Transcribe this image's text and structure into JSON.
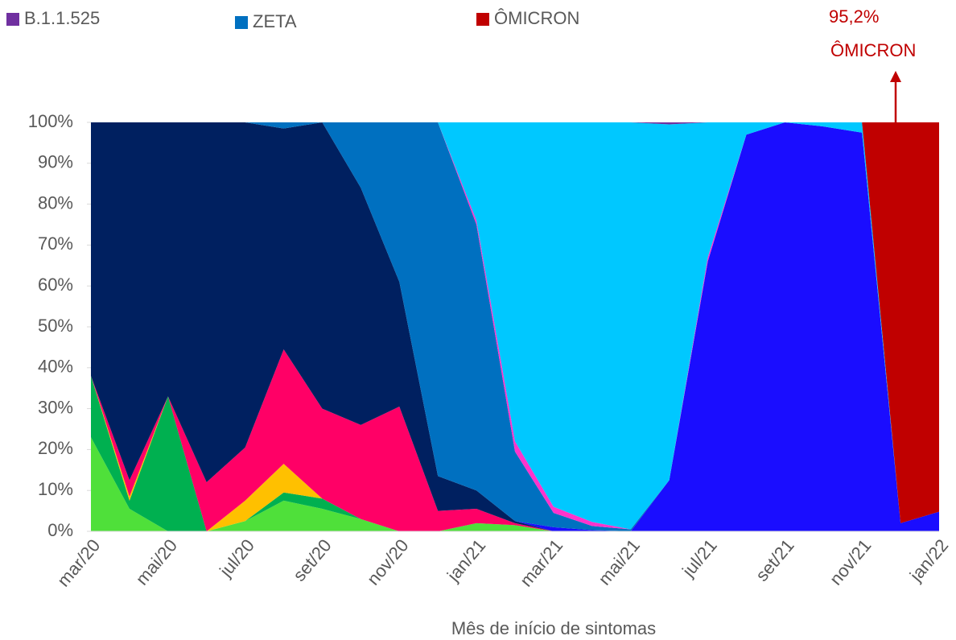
{
  "chart_data": {
    "type": "stacked_area",
    "xlabel": "Mês de início de sintomas",
    "annotation": {
      "value_label": "95,2%",
      "text": "ÔMICRON",
      "color": "#c00000"
    },
    "categories": [
      "mar/20",
      null,
      "mai/20",
      null,
      "jul/20",
      null,
      "set/20",
      null,
      "nov/20",
      null,
      "jan/21",
      null,
      "mar/21",
      null,
      "mai/21",
      null,
      "jul/21",
      null,
      "set/21",
      null,
      "nov/21",
      null,
      "jan/22"
    ],
    "ylim": [
      0,
      100
    ],
    "yticks": [
      {
        "value": 0,
        "label": "0%"
      },
      {
        "value": 10,
        "label": "10%"
      },
      {
        "value": 20,
        "label": "20%"
      },
      {
        "value": 30,
        "label": "30%"
      },
      {
        "value": 40,
        "label": "40%"
      },
      {
        "value": 50,
        "label": "50%"
      },
      {
        "value": 60,
        "label": "60%"
      },
      {
        "value": 70,
        "label": "70%"
      },
      {
        "value": 80,
        "label": "80%"
      },
      {
        "value": 90,
        "label": "90%"
      },
      {
        "value": 100,
        "label": "100%"
      }
    ],
    "series": [
      {
        "color": "#4fe03a",
        "values": [
          23,
          5.5,
          0,
          0,
          2.5,
          7.5,
          5.5,
          3,
          0,
          0,
          2,
          1.5,
          0,
          0,
          0,
          0,
          0,
          0,
          0,
          0,
          0,
          0,
          0
        ]
      },
      {
        "color": "#00b050",
        "values": [
          15,
          2,
          33,
          0,
          0,
          2,
          2.5,
          0,
          0,
          0,
          0,
          0,
          0,
          0,
          0,
          0,
          0,
          0,
          0,
          0,
          0,
          0,
          0
        ]
      },
      {
        "color": "#ffc000",
        "values": [
          0,
          1,
          0,
          0,
          5,
          7,
          0,
          0,
          0,
          0,
          0,
          0,
          0,
          0,
          0,
          0,
          0,
          0,
          0,
          0,
          0,
          0,
          0
        ]
      },
      {
        "color": "#ff0066",
        "values": [
          0,
          4,
          0,
          12,
          13,
          28,
          22,
          23,
          30.5,
          5,
          3.5,
          0.5,
          0,
          0,
          0,
          0,
          0,
          0,
          0,
          0,
          0,
          0,
          0
        ]
      },
      {
        "color": "#002060",
        "values": [
          62,
          87.5,
          67,
          88,
          79.5,
          54,
          70,
          58,
          30.5,
          8.5,
          4.5,
          0.5,
          0,
          0,
          0,
          0,
          0,
          0,
          0,
          0,
          0,
          0,
          0
        ]
      },
      {
        "color": "#1a0dff",
        "values": [
          0,
          0,
          0,
          0,
          0,
          0,
          0,
          0,
          0,
          0,
          0,
          0,
          1,
          0.3,
          0,
          12.5,
          66,
          97,
          100,
          99,
          97.5,
          2,
          4.8
        ]
      },
      {
        "name": "ZETA",
        "color": "#0070c0",
        "values": [
          0,
          0,
          0,
          0,
          0,
          1.5,
          0,
          16,
          39,
          86.5,
          65,
          17,
          3.5,
          1,
          0.5,
          0,
          0,
          0,
          0,
          0,
          0,
          0,
          0
        ]
      },
      {
        "color": "#ff33cc",
        "values": [
          0,
          0,
          0,
          0,
          0,
          0,
          0,
          0,
          0,
          0,
          1,
          2.5,
          1.5,
          1,
          0,
          0,
          1,
          0,
          0,
          0,
          0,
          0,
          0
        ]
      },
      {
        "color": "#00c8ff",
        "values": [
          0,
          0,
          0,
          0,
          0,
          0,
          0,
          0,
          0,
          0,
          24,
          78,
          94,
          97.7,
          99.5,
          87,
          33,
          3,
          0,
          1,
          2.5,
          0,
          0
        ]
      },
      {
        "name": "B.1.1.525",
        "color": "#7030a0",
        "values": [
          0,
          0,
          0,
          0,
          0,
          0,
          0,
          0,
          0,
          0,
          0,
          0,
          0,
          0,
          0,
          0.5,
          0,
          0,
          0,
          0,
          0,
          0,
          0
        ]
      },
      {
        "name": "ÔMICRON",
        "color": "#c00000",
        "values": [
          0,
          0,
          0,
          0,
          0,
          0,
          0,
          0,
          0,
          0,
          0,
          0,
          0,
          0,
          0,
          0,
          0,
          0,
          0,
          0,
          0,
          98,
          95.2
        ]
      }
    ]
  }
}
